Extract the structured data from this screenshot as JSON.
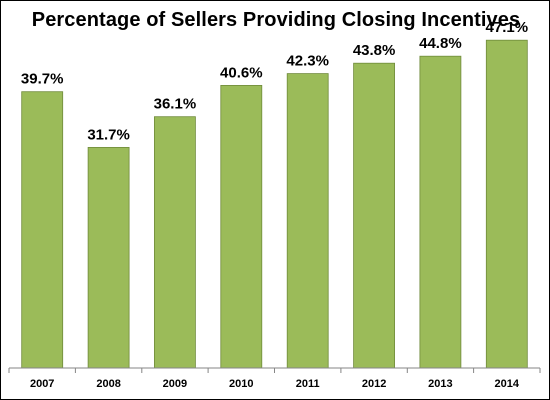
{
  "chart_data": {
    "type": "bar",
    "title": "Percentage of Sellers Providing Closing Incentives",
    "categories": [
      "2007",
      "2008",
      "2009",
      "2010",
      "2011",
      "2012",
      "2013",
      "2014"
    ],
    "values": [
      39.7,
      31.7,
      36.1,
      40.6,
      42.3,
      43.8,
      44.8,
      47.1
    ],
    "data_labels": [
      "39.7%",
      "31.7%",
      "36.1%",
      "40.6%",
      "42.3%",
      "43.8%",
      "44.8%",
      "47.1%"
    ],
    "xlabel": "",
    "ylabel": "",
    "ylim": [
      0,
      50
    ],
    "grid": false,
    "legend": "none",
    "colors": {
      "bar_fill": "#9BBB59",
      "bar_stroke": "#6F8A3A",
      "axis": "#868686",
      "text": "#000000"
    }
  }
}
